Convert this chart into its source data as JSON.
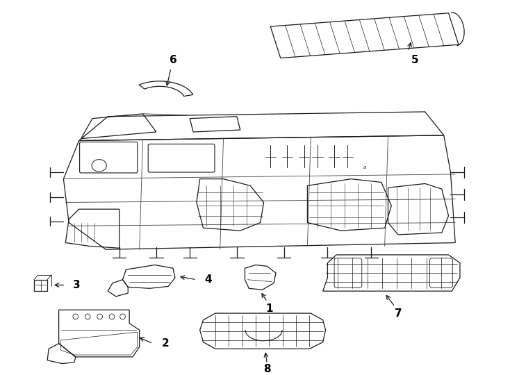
{
  "background_color": "#ffffff",
  "line_color": "#1a1a1a",
  "text_color": "#000000",
  "fig_width": 7.34,
  "fig_height": 5.4,
  "label_fontsize": 11,
  "lw": 0.9
}
